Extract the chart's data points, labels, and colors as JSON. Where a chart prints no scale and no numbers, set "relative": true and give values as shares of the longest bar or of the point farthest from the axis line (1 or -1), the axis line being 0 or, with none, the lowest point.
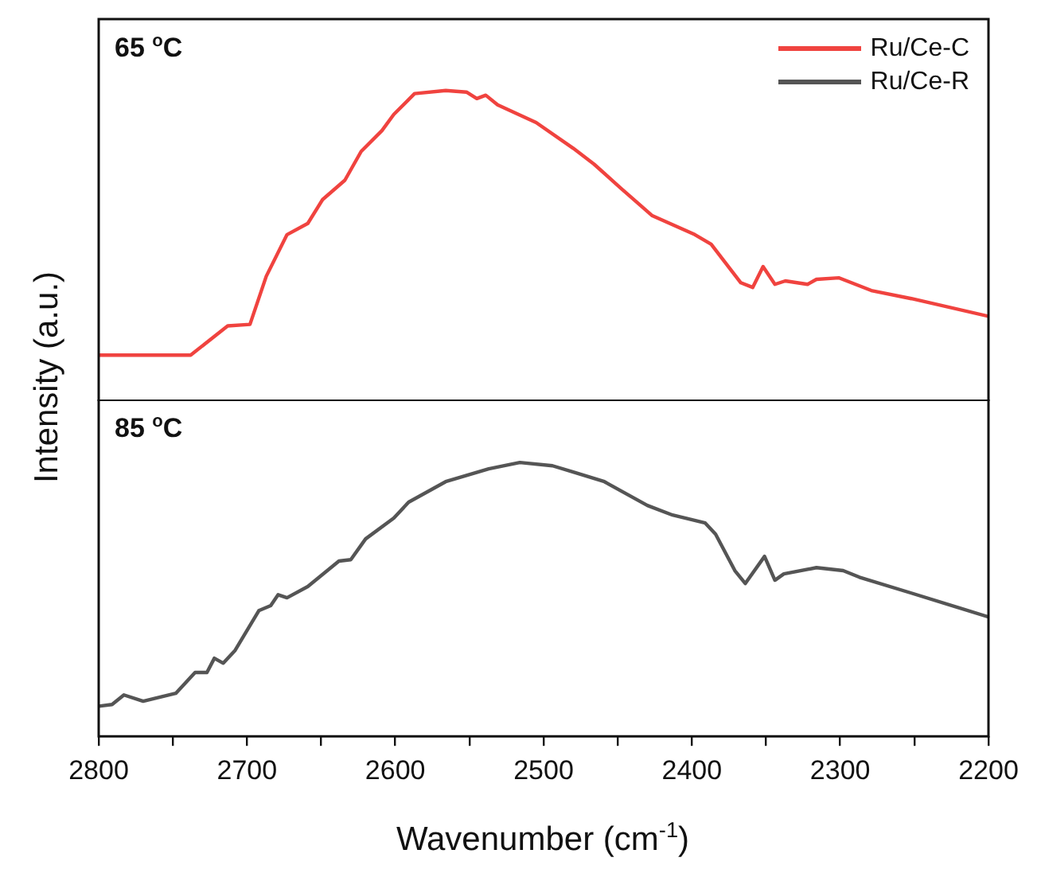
{
  "chart_data": [
    {
      "type": "line",
      "ylabel": "Intensity (a.u.)",
      "annotations": [
        "65 $^{o}$C"
      ],
      "relative": true,
      "legend": "top right",
      "tick_labels": false,
      "marker": "none",
      "line_style": "solid",
      "xlim": [
        2800,
        2200
      ],
      "series": [
        {
          "name": "Ru/Ce-C",
          "color": "#f0433f",
          "x": [
            2800,
            2738,
            2713,
            2698,
            2687,
            2673,
            2659,
            2649,
            2634,
            2623,
            2609,
            2601,
            2587,
            2566,
            2552,
            2545,
            2539,
            2531,
            2505,
            2480,
            2466,
            2448,
            2427,
            2398,
            2387,
            2367,
            2359,
            2352,
            2344,
            2337,
            2322,
            2316,
            2301,
            2279,
            2252,
            2200
          ],
          "values": [
            0.148,
            0.148,
            0.242,
            0.247,
            0.402,
            0.536,
            0.572,
            0.649,
            0.711,
            0.804,
            0.871,
            0.923,
            0.99,
            1,
            0.995,
            0.974,
            0.985,
            0.954,
            0.897,
            0.814,
            0.763,
            0.686,
            0.598,
            0.536,
            0.505,
            0.381,
            0.366,
            0.433,
            0.376,
            0.387,
            0.376,
            0.392,
            0.397,
            0.356,
            0.33,
            0.273
          ]
        }
      ]
    },
    {
      "type": "line",
      "xlabel": "Wavenumber (cm$^{-1}$)",
      "annotations": [
        "85 $^{o}$C"
      ],
      "relative": true,
      "tick_labels": "x",
      "marker": "none",
      "line_style": "solid",
      "xlim": [
        2800,
        2200
      ],
      "xticks": [
        2800,
        {
          "value": 2750,
          "label": null
        },
        2700,
        {
          "value": 2650,
          "label": null
        },
        2600,
        {
          "value": 2550,
          "label": null
        },
        2500,
        {
          "value": 2450,
          "label": null
        },
        2400,
        {
          "value": 2350,
          "label": null
        },
        2300,
        {
          "value": 2250,
          "label": null
        },
        2200
      ],
      "series": [
        {
          "name": "Ru/Ce-R",
          "color": "#555555",
          "x": [
            2800,
            2791,
            2783,
            2770,
            2748,
            2735,
            2727,
            2722,
            2716,
            2708,
            2692,
            2684,
            2679,
            2673,
            2659,
            2638,
            2630,
            2620,
            2601,
            2591,
            2566,
            2537,
            2516,
            2494,
            2480,
            2459,
            2430,
            2413,
            2391,
            2384,
            2371,
            2364,
            2351,
            2344,
            2338,
            2316,
            2298,
            2287,
            2252,
            2200
          ],
          "values": [
            0.11,
            0.116,
            0.151,
            0.128,
            0.157,
            0.233,
            0.233,
            0.285,
            0.267,
            0.314,
            0.459,
            0.477,
            0.517,
            0.506,
            0.547,
            0.64,
            0.645,
            0.721,
            0.797,
            0.855,
            0.93,
            0.977,
            1,
            0.988,
            0.965,
            0.93,
            0.843,
            0.808,
            0.779,
            0.738,
            0.605,
            0.558,
            0.657,
            0.57,
            0.593,
            0.616,
            0.605,
            0.581,
            0.523,
            0.436
          ]
        }
      ]
    }
  ]
}
